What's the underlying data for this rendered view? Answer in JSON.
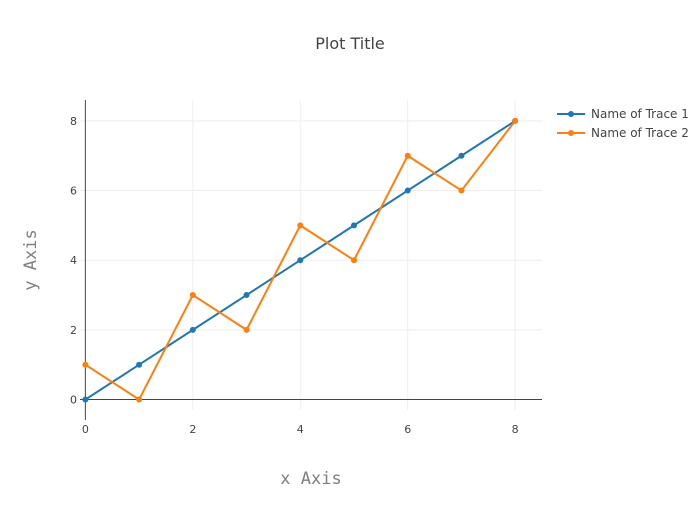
{
  "chart_data": {
    "type": "line",
    "title": "Plot Title",
    "xlabel": "x Axis",
    "ylabel": "y Axis",
    "xlim": [
      -0.1,
      8.5
    ],
    "ylim": [
      -0.3,
      8.6
    ],
    "xticks": [
      0,
      2,
      4,
      6,
      8
    ],
    "yticks": [
      0,
      2,
      4,
      6,
      8
    ],
    "grid": true,
    "legend_position": "top-right",
    "series": [
      {
        "name": "Name of Trace 1",
        "color": "#1f77b4",
        "x": [
          0,
          1,
          2,
          3,
          4,
          5,
          6,
          7,
          8
        ],
        "y": [
          0,
          1,
          2,
          3,
          4,
          5,
          6,
          7,
          8
        ]
      },
      {
        "name": "Name of Trace 2",
        "color": "#ff7f0e",
        "x": [
          0,
          1,
          2,
          3,
          4,
          5,
          6,
          7,
          8
        ],
        "y": [
          1,
          0,
          3,
          2,
          5,
          4,
          7,
          6,
          8
        ]
      }
    ]
  }
}
